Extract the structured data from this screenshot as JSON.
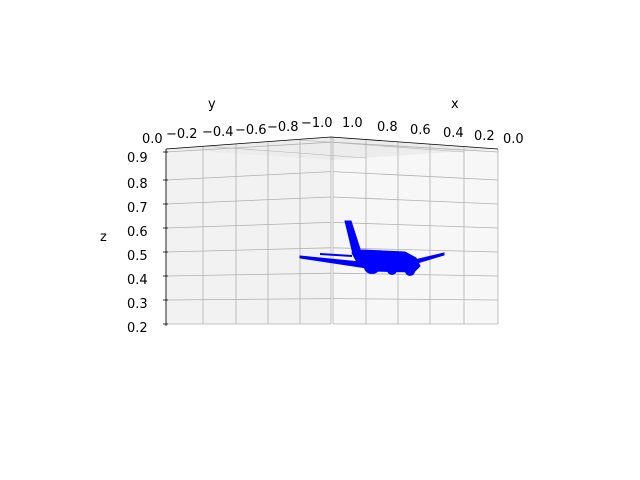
{
  "chart_data": {
    "type": "scatter",
    "projection": "3d",
    "title": "",
    "xlabel": "x",
    "ylabel": "y",
    "zlabel": "z",
    "xlim": [
      0.0,
      1.0
    ],
    "ylim": [
      -1.0,
      0.0
    ],
    "zlim": [
      0.2,
      0.9
    ],
    "x_ticks": [
      "1.0",
      "0.8",
      "0.6",
      "0.4",
      "0.2",
      "0.0"
    ],
    "y_ticks": [
      "0.0",
      "−0.2",
      "−0.4",
      "−0.6",
      "−0.8",
      "−1.0"
    ],
    "z_ticks": [
      "0.2",
      "0.3",
      "0.4",
      "0.5",
      "0.6",
      "0.7",
      "0.8",
      "0.9"
    ],
    "grid": true,
    "series": [
      {
        "marker_color": "#0000ff",
        "description": "point cloud of an airplane",
        "shape": "airplane"
      }
    ]
  }
}
